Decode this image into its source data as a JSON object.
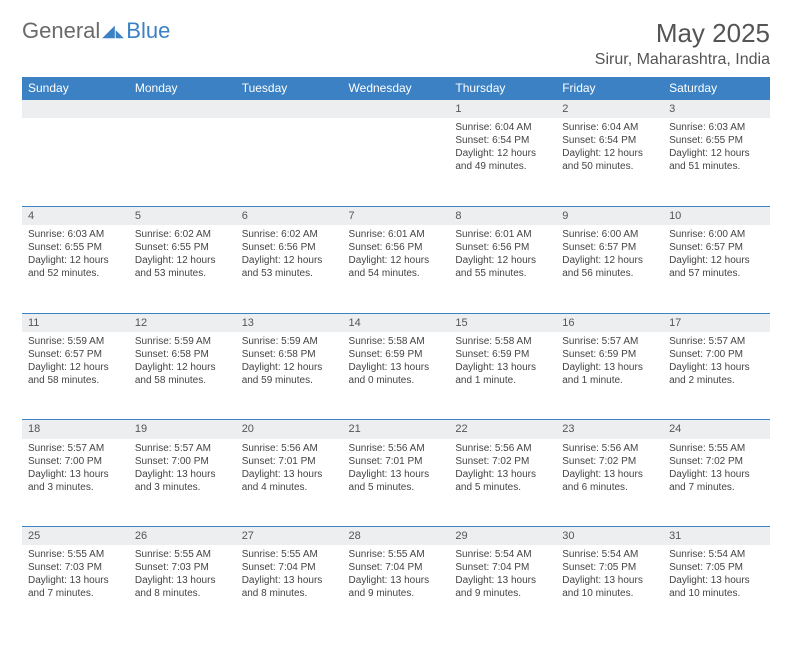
{
  "brand": {
    "name1": "General",
    "name2": "Blue"
  },
  "title": "May 2025",
  "location": "Sirur, Maharashtra, India",
  "colors": {
    "header_bg": "#3b81c3",
    "header_text": "#ffffff",
    "daynum_bg": "#eceef0",
    "grid_line": "#3b81c3",
    "body_text": "#444444",
    "title_text": "#555555"
  },
  "typography": {
    "title_fontsize": 26,
    "location_fontsize": 16,
    "dayheader_fontsize": 12,
    "cell_fontsize": 10
  },
  "day_headers": [
    "Sunday",
    "Monday",
    "Tuesday",
    "Wednesday",
    "Thursday",
    "Friday",
    "Saturday"
  ],
  "weeks": [
    {
      "nums": [
        "",
        "",
        "",
        "",
        "1",
        "2",
        "3"
      ],
      "cells": [
        null,
        null,
        null,
        null,
        {
          "sunrise": "Sunrise: 6:04 AM",
          "sunset": "Sunset: 6:54 PM",
          "day1": "Daylight: 12 hours",
          "day2": "and 49 minutes."
        },
        {
          "sunrise": "Sunrise: 6:04 AM",
          "sunset": "Sunset: 6:54 PM",
          "day1": "Daylight: 12 hours",
          "day2": "and 50 minutes."
        },
        {
          "sunrise": "Sunrise: 6:03 AM",
          "sunset": "Sunset: 6:55 PM",
          "day1": "Daylight: 12 hours",
          "day2": "and 51 minutes."
        }
      ]
    },
    {
      "nums": [
        "4",
        "5",
        "6",
        "7",
        "8",
        "9",
        "10"
      ],
      "cells": [
        {
          "sunrise": "Sunrise: 6:03 AM",
          "sunset": "Sunset: 6:55 PM",
          "day1": "Daylight: 12 hours",
          "day2": "and 52 minutes."
        },
        {
          "sunrise": "Sunrise: 6:02 AM",
          "sunset": "Sunset: 6:55 PM",
          "day1": "Daylight: 12 hours",
          "day2": "and 53 minutes."
        },
        {
          "sunrise": "Sunrise: 6:02 AM",
          "sunset": "Sunset: 6:56 PM",
          "day1": "Daylight: 12 hours",
          "day2": "and 53 minutes."
        },
        {
          "sunrise": "Sunrise: 6:01 AM",
          "sunset": "Sunset: 6:56 PM",
          "day1": "Daylight: 12 hours",
          "day2": "and 54 minutes."
        },
        {
          "sunrise": "Sunrise: 6:01 AM",
          "sunset": "Sunset: 6:56 PM",
          "day1": "Daylight: 12 hours",
          "day2": "and 55 minutes."
        },
        {
          "sunrise": "Sunrise: 6:00 AM",
          "sunset": "Sunset: 6:57 PM",
          "day1": "Daylight: 12 hours",
          "day2": "and 56 minutes."
        },
        {
          "sunrise": "Sunrise: 6:00 AM",
          "sunset": "Sunset: 6:57 PM",
          "day1": "Daylight: 12 hours",
          "day2": "and 57 minutes."
        }
      ]
    },
    {
      "nums": [
        "11",
        "12",
        "13",
        "14",
        "15",
        "16",
        "17"
      ],
      "cells": [
        {
          "sunrise": "Sunrise: 5:59 AM",
          "sunset": "Sunset: 6:57 PM",
          "day1": "Daylight: 12 hours",
          "day2": "and 58 minutes."
        },
        {
          "sunrise": "Sunrise: 5:59 AM",
          "sunset": "Sunset: 6:58 PM",
          "day1": "Daylight: 12 hours",
          "day2": "and 58 minutes."
        },
        {
          "sunrise": "Sunrise: 5:59 AM",
          "sunset": "Sunset: 6:58 PM",
          "day1": "Daylight: 12 hours",
          "day2": "and 59 minutes."
        },
        {
          "sunrise": "Sunrise: 5:58 AM",
          "sunset": "Sunset: 6:59 PM",
          "day1": "Daylight: 13 hours",
          "day2": "and 0 minutes."
        },
        {
          "sunrise": "Sunrise: 5:58 AM",
          "sunset": "Sunset: 6:59 PM",
          "day1": "Daylight: 13 hours",
          "day2": "and 1 minute."
        },
        {
          "sunrise": "Sunrise: 5:57 AM",
          "sunset": "Sunset: 6:59 PM",
          "day1": "Daylight: 13 hours",
          "day2": "and 1 minute."
        },
        {
          "sunrise": "Sunrise: 5:57 AM",
          "sunset": "Sunset: 7:00 PM",
          "day1": "Daylight: 13 hours",
          "day2": "and 2 minutes."
        }
      ]
    },
    {
      "nums": [
        "18",
        "19",
        "20",
        "21",
        "22",
        "23",
        "24"
      ],
      "cells": [
        {
          "sunrise": "Sunrise: 5:57 AM",
          "sunset": "Sunset: 7:00 PM",
          "day1": "Daylight: 13 hours",
          "day2": "and 3 minutes."
        },
        {
          "sunrise": "Sunrise: 5:57 AM",
          "sunset": "Sunset: 7:00 PM",
          "day1": "Daylight: 13 hours",
          "day2": "and 3 minutes."
        },
        {
          "sunrise": "Sunrise: 5:56 AM",
          "sunset": "Sunset: 7:01 PM",
          "day1": "Daylight: 13 hours",
          "day2": "and 4 minutes."
        },
        {
          "sunrise": "Sunrise: 5:56 AM",
          "sunset": "Sunset: 7:01 PM",
          "day1": "Daylight: 13 hours",
          "day2": "and 5 minutes."
        },
        {
          "sunrise": "Sunrise: 5:56 AM",
          "sunset": "Sunset: 7:02 PM",
          "day1": "Daylight: 13 hours",
          "day2": "and 5 minutes."
        },
        {
          "sunrise": "Sunrise: 5:56 AM",
          "sunset": "Sunset: 7:02 PM",
          "day1": "Daylight: 13 hours",
          "day2": "and 6 minutes."
        },
        {
          "sunrise": "Sunrise: 5:55 AM",
          "sunset": "Sunset: 7:02 PM",
          "day1": "Daylight: 13 hours",
          "day2": "and 7 minutes."
        }
      ]
    },
    {
      "nums": [
        "25",
        "26",
        "27",
        "28",
        "29",
        "30",
        "31"
      ],
      "cells": [
        {
          "sunrise": "Sunrise: 5:55 AM",
          "sunset": "Sunset: 7:03 PM",
          "day1": "Daylight: 13 hours",
          "day2": "and 7 minutes."
        },
        {
          "sunrise": "Sunrise: 5:55 AM",
          "sunset": "Sunset: 7:03 PM",
          "day1": "Daylight: 13 hours",
          "day2": "and 8 minutes."
        },
        {
          "sunrise": "Sunrise: 5:55 AM",
          "sunset": "Sunset: 7:04 PM",
          "day1": "Daylight: 13 hours",
          "day2": "and 8 minutes."
        },
        {
          "sunrise": "Sunrise: 5:55 AM",
          "sunset": "Sunset: 7:04 PM",
          "day1": "Daylight: 13 hours",
          "day2": "and 9 minutes."
        },
        {
          "sunrise": "Sunrise: 5:54 AM",
          "sunset": "Sunset: 7:04 PM",
          "day1": "Daylight: 13 hours",
          "day2": "and 9 minutes."
        },
        {
          "sunrise": "Sunrise: 5:54 AM",
          "sunset": "Sunset: 7:05 PM",
          "day1": "Daylight: 13 hours",
          "day2": "and 10 minutes."
        },
        {
          "sunrise": "Sunrise: 5:54 AM",
          "sunset": "Sunset: 7:05 PM",
          "day1": "Daylight: 13 hours",
          "day2": "and 10 minutes."
        }
      ]
    }
  ]
}
